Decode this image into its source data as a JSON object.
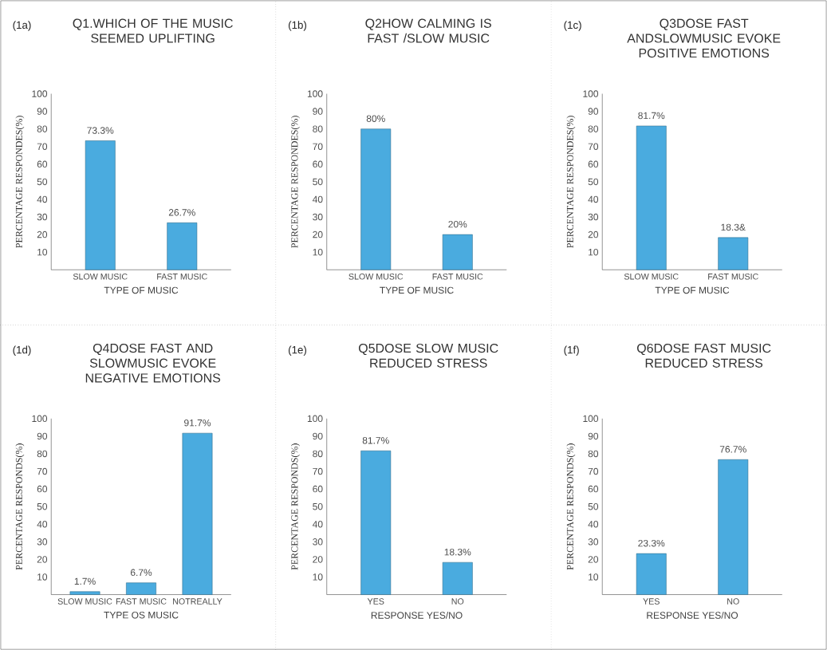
{
  "chart_data": [
    {
      "type": "bar",
      "title": "Q1.WHICH OF THE MUSIC SEEMED UPLIFTING",
      "annotations": [
        "(1a)"
      ],
      "xlabel": "TYPE OF MUSIC",
      "ylabel": "PERCENTAGE RESPONDES(%)",
      "categories": [
        "SLOW MUSIC",
        "FAST MUSIC"
      ],
      "values": [
        73.3,
        26.7
      ],
      "value_labels": [
        "73.3%",
        "26.7%"
      ],
      "color": "#4aabdf",
      "ylim": [
        0,
        100
      ],
      "yticks": [
        10,
        20,
        30,
        40,
        50,
        60,
        70,
        80,
        90,
        100
      ]
    },
    {
      "type": "bar",
      "title": "Q2HOW CALMING IS FAST /SLOW MUSIC",
      "annotations": [
        "(1b)"
      ],
      "xlabel": "TYPE OF MUSIC",
      "ylabel": "PERCENTAGE RESPONDES(%)",
      "categories": [
        "SLOW MUSIC",
        "FAST MUSIC"
      ],
      "values": [
        80,
        20
      ],
      "value_labels": [
        "80%",
        "20%"
      ],
      "color": "#4aabdf",
      "ylim": [
        0,
        100
      ],
      "yticks": [
        10,
        20,
        30,
        40,
        50,
        60,
        70,
        80,
        90,
        100
      ]
    },
    {
      "type": "bar",
      "title": "Q3DOSE FAST ANDSLOWMUSIC EVOKE POSITIVE EMOTIONS",
      "annotations": [
        "(1c)"
      ],
      "xlabel": "TYPE OF MUSIC",
      "ylabel": "PERCENTAGE RESPONDES(%)",
      "categories": [
        "SLOW MUSIC",
        "FAST MUSIC"
      ],
      "values": [
        81.7,
        18.3
      ],
      "value_labels": [
        "81.7%",
        "18.3&"
      ],
      "color": "#4aabdf",
      "ylim": [
        0,
        100
      ],
      "yticks": [
        10,
        20,
        30,
        40,
        50,
        60,
        70,
        80,
        90,
        100
      ]
    },
    {
      "type": "bar",
      "title": "Q4DOSE FAST AND SLOWMUSIC EVOKE NEGATIVE EMOTIONS",
      "annotations": [
        "(1d)"
      ],
      "xlabel": "TYPE OS MUSIC",
      "ylabel": "PERCENTAGE RESPONDS(%)",
      "categories": [
        "SLOW MUSIC",
        "FAST MUSIC",
        "NOTREALLY"
      ],
      "values": [
        1.7,
        6.7,
        91.7
      ],
      "value_labels": [
        "1.7%",
        "6.7%",
        "91.7%"
      ],
      "color": "#4aabdf",
      "ylim": [
        0,
        100
      ],
      "yticks": [
        10,
        20,
        30,
        40,
        50,
        60,
        70,
        80,
        90,
        100
      ]
    },
    {
      "type": "bar",
      "title": "Q5DOSE SLOW MUSIC REDUCED STRESS",
      "annotations": [
        "(1e)"
      ],
      "xlabel": "RESPONSE YES/NO",
      "ylabel": "PERCENTAGE RESPONDS(%)",
      "categories": [
        "YES",
        "NO"
      ],
      "values": [
        81.7,
        18.3
      ],
      "value_labels": [
        "81.7%",
        "18.3%"
      ],
      "color": "#4aabdf",
      "ylim": [
        0,
        100
      ],
      "yticks": [
        10,
        20,
        30,
        40,
        50,
        60,
        70,
        80,
        90,
        100
      ]
    },
    {
      "type": "bar",
      "title": "Q6DOSE FAST MUSIC REDUCED STRESS",
      "annotations": [
        "(1f)"
      ],
      "xlabel": "RESPONSE YES/NO",
      "ylabel": "PERCENTAGE RESPONDS(%)",
      "categories": [
        "YES",
        "NO"
      ],
      "values": [
        23.3,
        76.7
      ],
      "value_labels": [
        "23.3%",
        "76.7%"
      ],
      "color": "#4aabdf",
      "ylim": [
        0,
        100
      ],
      "yticks": [
        10,
        20,
        30,
        40,
        50,
        60,
        70,
        80,
        90,
        100
      ]
    }
  ]
}
